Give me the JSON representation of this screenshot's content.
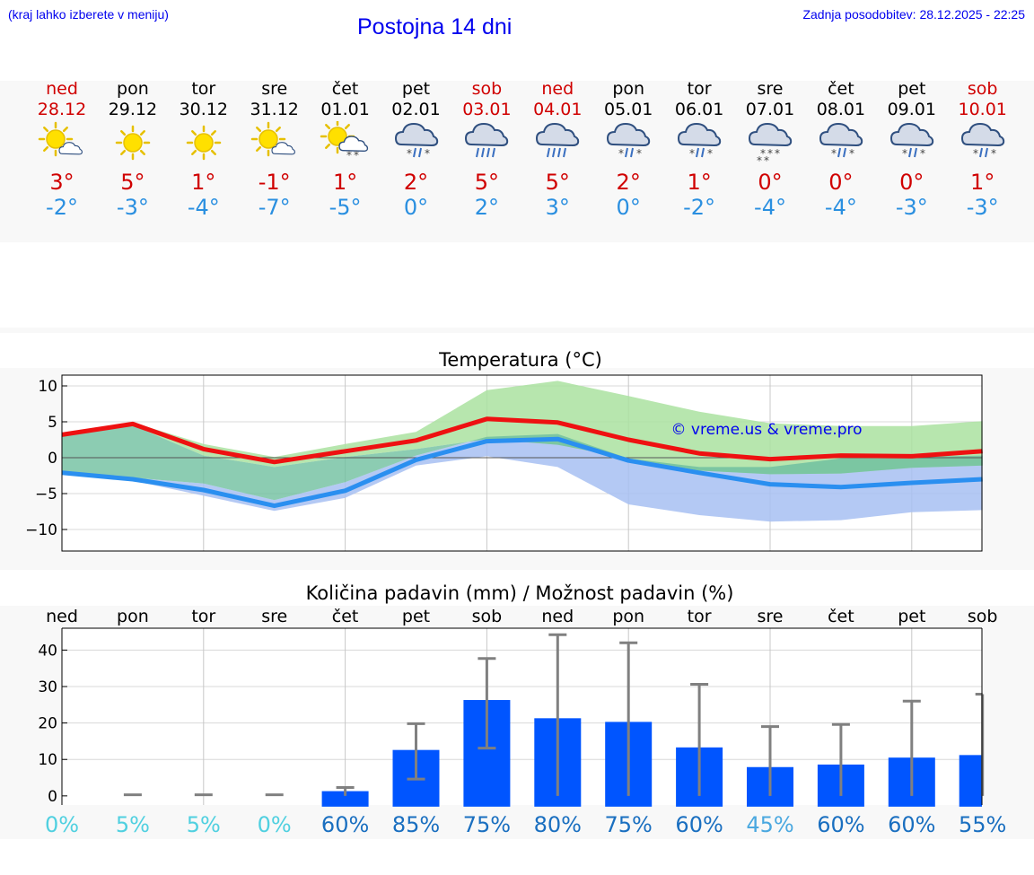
{
  "header": {
    "hint": "(kraj lahko izberete v meniju)",
    "title": "Postojna 14 dni",
    "updated": "Zadnja posodobitev: 28.12.2025 - 22:25"
  },
  "days": [
    {
      "name": "ned",
      "date": "28.12",
      "weekend": true,
      "icon": "sun-cloud-icon",
      "tmax": "3°",
      "tmin": "-2°"
    },
    {
      "name": "pon",
      "date": "29.12",
      "weekend": false,
      "icon": "sun-icon",
      "tmax": "5°",
      "tmin": "-3°"
    },
    {
      "name": "tor",
      "date": "30.12",
      "weekend": false,
      "icon": "sun-icon",
      "tmax": "1°",
      "tmin": "-4°"
    },
    {
      "name": "sre",
      "date": "31.12",
      "weekend": false,
      "icon": "sun-cloud-icon",
      "tmax": "-1°",
      "tmin": "-7°"
    },
    {
      "name": "čet",
      "date": "01.01",
      "weekend": false,
      "icon": "sun-cloud-snow-icon",
      "tmax": "1°",
      "tmin": "-5°"
    },
    {
      "name": "pet",
      "date": "02.01",
      "weekend": false,
      "icon": "cloud-sleet-icon",
      "tmax": "2°",
      "tmin": "0°"
    },
    {
      "name": "sob",
      "date": "03.01",
      "weekend": true,
      "icon": "cloud-rain-icon",
      "tmax": "5°",
      "tmin": "2°"
    },
    {
      "name": "ned",
      "date": "04.01",
      "weekend": true,
      "icon": "cloud-rain-icon",
      "tmax": "5°",
      "tmin": "3°"
    },
    {
      "name": "pon",
      "date": "05.01",
      "weekend": false,
      "icon": "cloud-sleet-icon",
      "tmax": "2°",
      "tmin": "0°"
    },
    {
      "name": "tor",
      "date": "06.01",
      "weekend": false,
      "icon": "cloud-sleet-icon",
      "tmax": "1°",
      "tmin": "-2°"
    },
    {
      "name": "sre",
      "date": "07.01",
      "weekend": false,
      "icon": "cloud-snow-icon",
      "tmax": "0°",
      "tmin": "-4°"
    },
    {
      "name": "čet",
      "date": "08.01",
      "weekend": false,
      "icon": "cloud-sleet-icon",
      "tmax": "0°",
      "tmin": "-4°"
    },
    {
      "name": "pet",
      "date": "09.01",
      "weekend": false,
      "icon": "cloud-sleet-icon",
      "tmax": "0°",
      "tmin": "-3°"
    },
    {
      "name": "sob",
      "date": "10.01",
      "weekend": true,
      "icon": "cloud-sleet-icon",
      "tmax": "1°",
      "tmin": "-3°"
    }
  ],
  "chart_data": [
    {
      "type": "line",
      "title": "Temperatura (°C)",
      "ylim": [
        -13,
        11.5
      ],
      "yticks": [
        10,
        5,
        0,
        -5,
        -10
      ],
      "ytick_labels": [
        "10",
        "5",
        "0",
        "−5",
        "−10"
      ],
      "x": [
        0,
        1,
        2,
        3,
        4,
        5,
        6,
        7,
        8,
        9,
        10,
        11,
        12,
        13
      ],
      "series": [
        {
          "name": "max",
          "color": "#ee1111",
          "values": [
            3.2,
            4.7,
            1.2,
            -0.6,
            0.9,
            2.4,
            5.4,
            4.9,
            2.5,
            0.6,
            -0.2,
            0.3,
            0.2,
            0.9
          ],
          "band_low": [
            3.0,
            4.5,
            0.3,
            -1.3,
            0.1,
            1.2,
            2.6,
            1.8,
            -0.1,
            -1.8,
            -2.3,
            -2.2,
            -1.4,
            -1.1
          ],
          "band_high": [
            3.4,
            4.9,
            1.9,
            0.1,
            1.9,
            3.6,
            9.4,
            10.7,
            8.6,
            6.4,
            4.8,
            4.4,
            4.4,
            5.1
          ],
          "band_color": "#aae2a0"
        },
        {
          "name": "min",
          "color": "#2a8ff0",
          "values": [
            -2.1,
            -3.0,
            -4.5,
            -6.7,
            -4.6,
            -0.3,
            2.3,
            2.6,
            -0.4,
            -2.1,
            -3.7,
            -4.1,
            -3.5,
            -3.0
          ],
          "band_low": [
            -2.3,
            -3.2,
            -5.3,
            -7.4,
            -5.6,
            -1.1,
            0.2,
            -1.3,
            -6.5,
            -8.0,
            -8.9,
            -8.7,
            -7.6,
            -7.3
          ],
          "band_high": [
            -1.9,
            -2.8,
            -3.6,
            -5.9,
            -3.4,
            0.3,
            2.9,
            3.3,
            -0.1,
            -1.3,
            -1.3,
            -0.1,
            0.1,
            0.3
          ],
          "band_color": "#a7c0f2"
        }
      ],
      "watermark": "© vreme.us & vreme.pro"
    },
    {
      "type": "bar",
      "title": "Količina padavin (mm) / Možnost padavin (%)",
      "ylim": [
        -2.5,
        46
      ],
      "yticks": [
        40,
        30,
        20,
        10,
        0
      ],
      "ytick_labels": [
        "40",
        "30",
        "20",
        "10",
        "0"
      ],
      "categories": [
        "ned",
        "pon",
        "tor",
        "sre",
        "čet",
        "pet",
        "sob",
        "ned",
        "pon",
        "tor",
        "sre",
        "čet",
        "pet",
        "sob"
      ],
      "values": [
        0,
        0,
        0,
        0,
        1.3,
        12.6,
        26.3,
        21.3,
        20.3,
        13.3,
        7.9,
        8.6,
        10.5,
        11.2
      ],
      "err_low": [
        0,
        0,
        0,
        0,
        0,
        4.6,
        13.1,
        0,
        0,
        0,
        0,
        0,
        0,
        0
      ],
      "err_high": [
        0,
        0.3,
        0.3,
        0.3,
        2.3,
        19.8,
        37.7,
        44.2,
        42.0,
        30.6,
        19.0,
        19.6,
        26.0,
        27.9
      ],
      "bar_color": "#0055ff",
      "probabilities": [
        "0%",
        "5%",
        "5%",
        "0%",
        "60%",
        "85%",
        "75%",
        "80%",
        "75%",
        "60%",
        "45%",
        "60%",
        "60%",
        "55%"
      ],
      "prob_colors": [
        "#50d0e0",
        "#50d0e0",
        "#50d0e0",
        "#50d0e0",
        "#1a6fc0",
        "#1a6fc0",
        "#1a6fc0",
        "#1a6fc0",
        "#1a6fc0",
        "#1a6fc0",
        "#4aa8e0",
        "#1a6fc0",
        "#1a6fc0",
        "#1a6fc0"
      ]
    }
  ]
}
